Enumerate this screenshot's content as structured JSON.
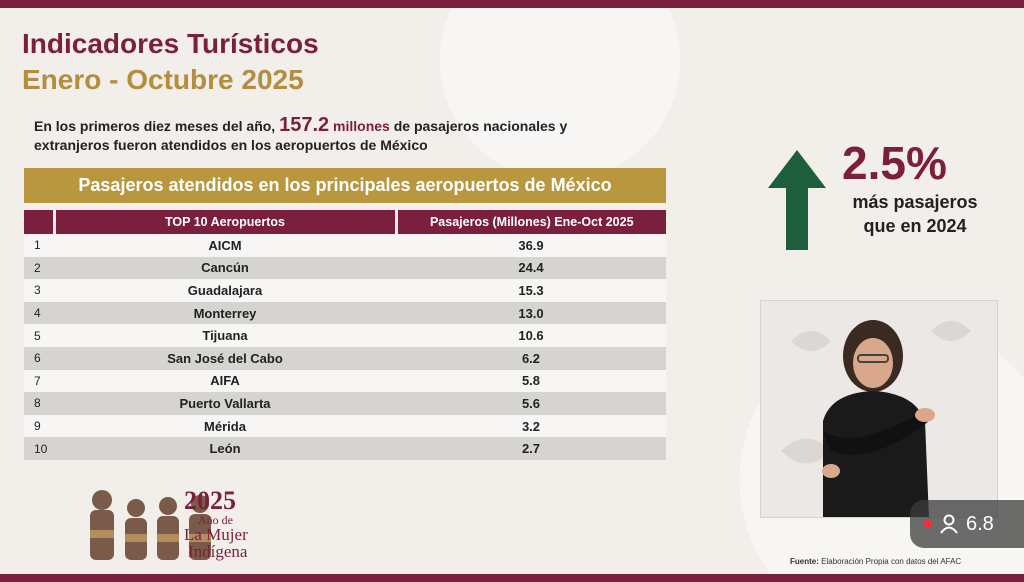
{
  "header": {
    "title": "Indicadores Turísticos",
    "period": "Enero - Octubre 2025"
  },
  "intro": {
    "prefix": "En los primeros diez meses del año,",
    "value": "157.2",
    "unit": "millones",
    "suffix_line1": "de pasajeros nacionales y",
    "line2": "extranjeros fueron atendidos en los aeropuertos de México"
  },
  "banner": "Pasajeros atendidos en los principales aeropuertos de México",
  "table": {
    "headers": [
      "",
      "TOP 10 Aeropuertos",
      "Pasajeros (Millones) Ene-Oct 2025"
    ],
    "rows": [
      {
        "rank": "1",
        "name": "AICM",
        "value": "36.9"
      },
      {
        "rank": "2",
        "name": "Cancún",
        "value": "24.4"
      },
      {
        "rank": "3",
        "name": "Guadalajara",
        "value": "15.3"
      },
      {
        "rank": "4",
        "name": "Monterrey",
        "value": "13.0"
      },
      {
        "rank": "5",
        "name": "Tijuana",
        "value": "10.6"
      },
      {
        "rank": "6",
        "name": "San José del Cabo",
        "value": "6.2"
      },
      {
        "rank": "7",
        "name": "AIFA",
        "value": "5.8"
      },
      {
        "rank": "8",
        "name": "Puerto Vallarta",
        "value": "5.6"
      },
      {
        "rank": "9",
        "name": "Mérida",
        "value": "3.2"
      },
      {
        "rank": "10",
        "name": "León",
        "value": "2.7"
      }
    ]
  },
  "highlight": {
    "percent": "2.5%",
    "line1": "más pasajeros",
    "line2": "que en 2024",
    "arrow_icon": "up-arrow-icon",
    "arrow_color": "#1f5e3d"
  },
  "logo": {
    "year": "2025",
    "line1": "Año de",
    "line2": "La Mujer",
    "line3": "Indígena"
  },
  "source": {
    "label": "Fuente:",
    "text": "Elaboración Propia con datos del AFAC"
  },
  "viewer": {
    "count": "6.8",
    "icon": "person-icon"
  },
  "colors": {
    "brand": "#7a1f3d",
    "gold": "#b9973f",
    "green": "#1f5e3d"
  }
}
